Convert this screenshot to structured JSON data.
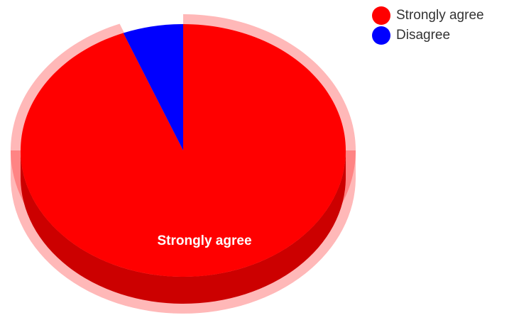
{
  "chart_data": {
    "type": "pie",
    "style": "3d",
    "categories": [
      "Strongly agree",
      "Disagree"
    ],
    "values": [
      94,
      6
    ],
    "colors": [
      "#ff0000",
      "#0000ff"
    ],
    "highlighted": "Strongly agree",
    "data_labels": [
      "Strongly agree",
      ""
    ],
    "legend_position": "top-right"
  }
}
